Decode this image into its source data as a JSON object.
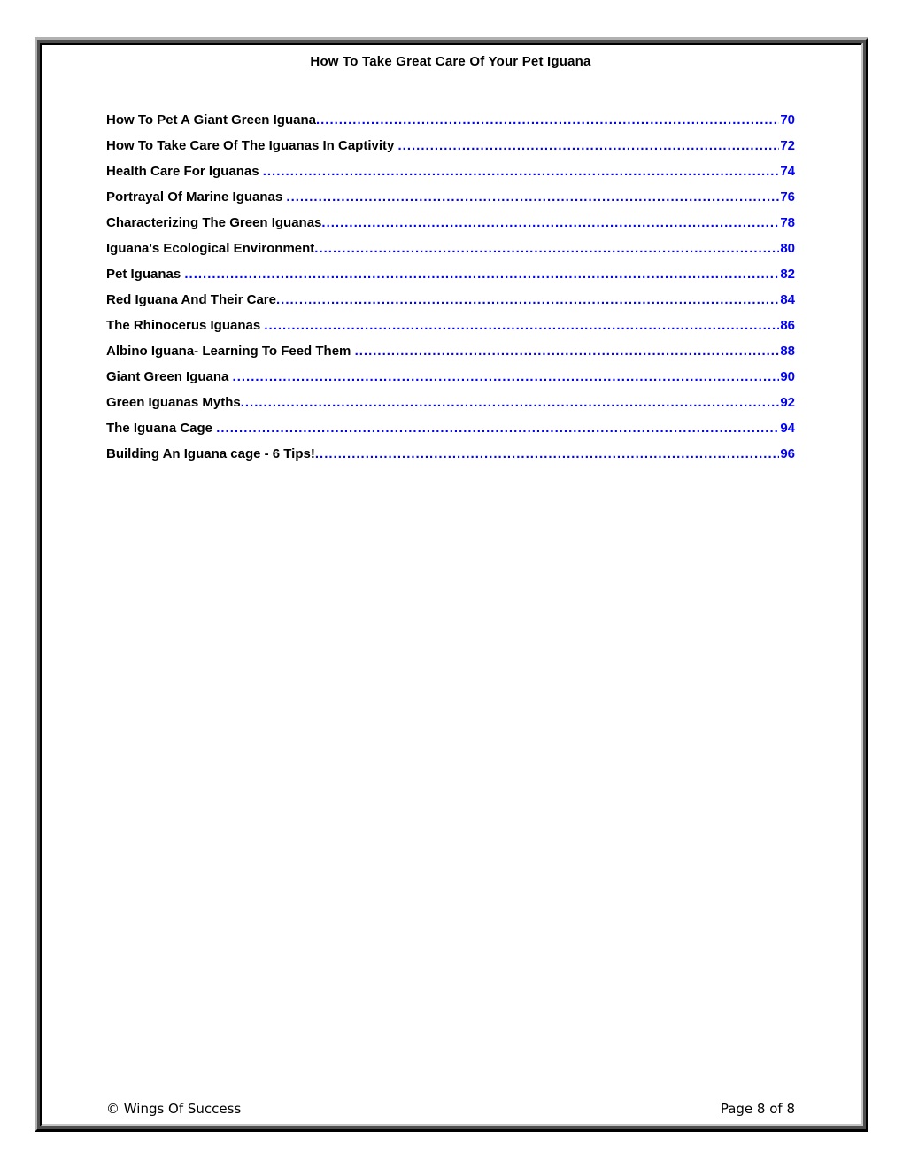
{
  "document": {
    "header_title": "How To Take Great Care Of Your Pet Iguana",
    "toc": {
      "leader_style": "dotted",
      "entries": [
        {
          "title": "How To Pet A Giant Green Iguana",
          "page": "70"
        },
        {
          "title": "How To Take Care Of The Iguanas In Captivity ",
          "page": "72"
        },
        {
          "title": "Health Care For Iguanas ",
          "page": "74"
        },
        {
          "title": "Portrayal Of Marine Iguanas ",
          "page": "76"
        },
        {
          "title": "Characterizing The Green Iguanas",
          "page": "78"
        },
        {
          "title": "Iguana's Ecological Environment",
          "page": "80"
        },
        {
          "title": "Pet Iguanas ",
          "page": "82"
        },
        {
          "title": "Red Iguana And Their Care",
          "page": "84"
        },
        {
          "title": "The Rhinocerus Iguanas ",
          "page": "86"
        },
        {
          "title": "Albino Iguana- Learning To Feed Them ",
          "page": "88"
        },
        {
          "title": "Giant Green Iguana ",
          "page": "90"
        },
        {
          "title": "Green Iguanas Myths",
          "page": "92"
        },
        {
          "title": "The Iguana Cage ",
          "page": "94"
        },
        {
          "title": "Building An Iguana cage - 6 Tips!",
          "page": "96"
        }
      ]
    },
    "footer": {
      "copyright": "© Wings Of Success",
      "page_indicator": "Page 8 of 8"
    },
    "colors": {
      "link_blue": "#0000ff",
      "text_black": "#000000"
    }
  }
}
